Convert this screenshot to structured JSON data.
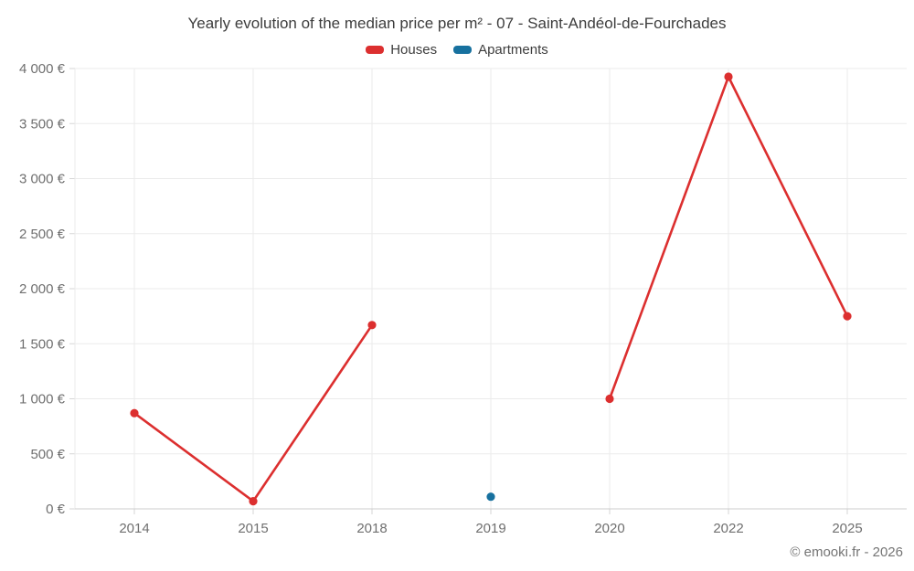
{
  "chart": {
    "title": "Yearly evolution of the median price per m² - 07 - Saint-Andéol-de-Fourchades"
  },
  "legend": {
    "items": [
      {
        "label": "Houses",
        "color": "#dc2f2f"
      },
      {
        "label": "Apartments",
        "color": "#17719f"
      }
    ]
  },
  "footer": {
    "credit": "© emooki.fr - 2026"
  },
  "colors": {
    "background": "#ffffff",
    "grid": "#ebebeb",
    "axis_line": "#cccccc",
    "tick": "#d6d6d6",
    "tick_label": "#6f6f6f",
    "title_text": "#3d3d3d",
    "credit_text": "#757575",
    "houses": "#dc2f2f",
    "apartments": "#17719f"
  },
  "chart_data": {
    "type": "line",
    "title": "Yearly evolution of the median price per m² - 07 - Saint-Andéol-de-Fourchades",
    "xlabel": "",
    "ylabel": "",
    "categories": [
      "2014",
      "2015",
      "2018",
      "2019",
      "2020",
      "2022",
      "2025"
    ],
    "series": [
      {
        "name": "Houses",
        "color": "#dc2f2f",
        "values": [
          870,
          70,
          1670,
          null,
          1000,
          3925,
          1750
        ]
      },
      {
        "name": "Apartments",
        "color": "#17719f",
        "values": [
          null,
          null,
          null,
          110,
          null,
          null,
          null
        ]
      }
    ],
    "ylim": [
      0,
      4000
    ],
    "y_ticks": [
      {
        "value": 0,
        "label": "0 €"
      },
      {
        "value": 500,
        "label": "500 €"
      },
      {
        "value": 1000,
        "label": "1 000 €"
      },
      {
        "value": 1500,
        "label": "1 500 €"
      },
      {
        "value": 2000,
        "label": "2 000 €"
      },
      {
        "value": 2500,
        "label": "2 500 €"
      },
      {
        "value": 3000,
        "label": "3 000 €"
      },
      {
        "value": 3500,
        "label": "3 500 €"
      },
      {
        "value": 4000,
        "label": "4 000 €"
      }
    ],
    "grid": true,
    "legend_position": "top",
    "marker_radius": 4.6,
    "line_width": 2.6
  }
}
